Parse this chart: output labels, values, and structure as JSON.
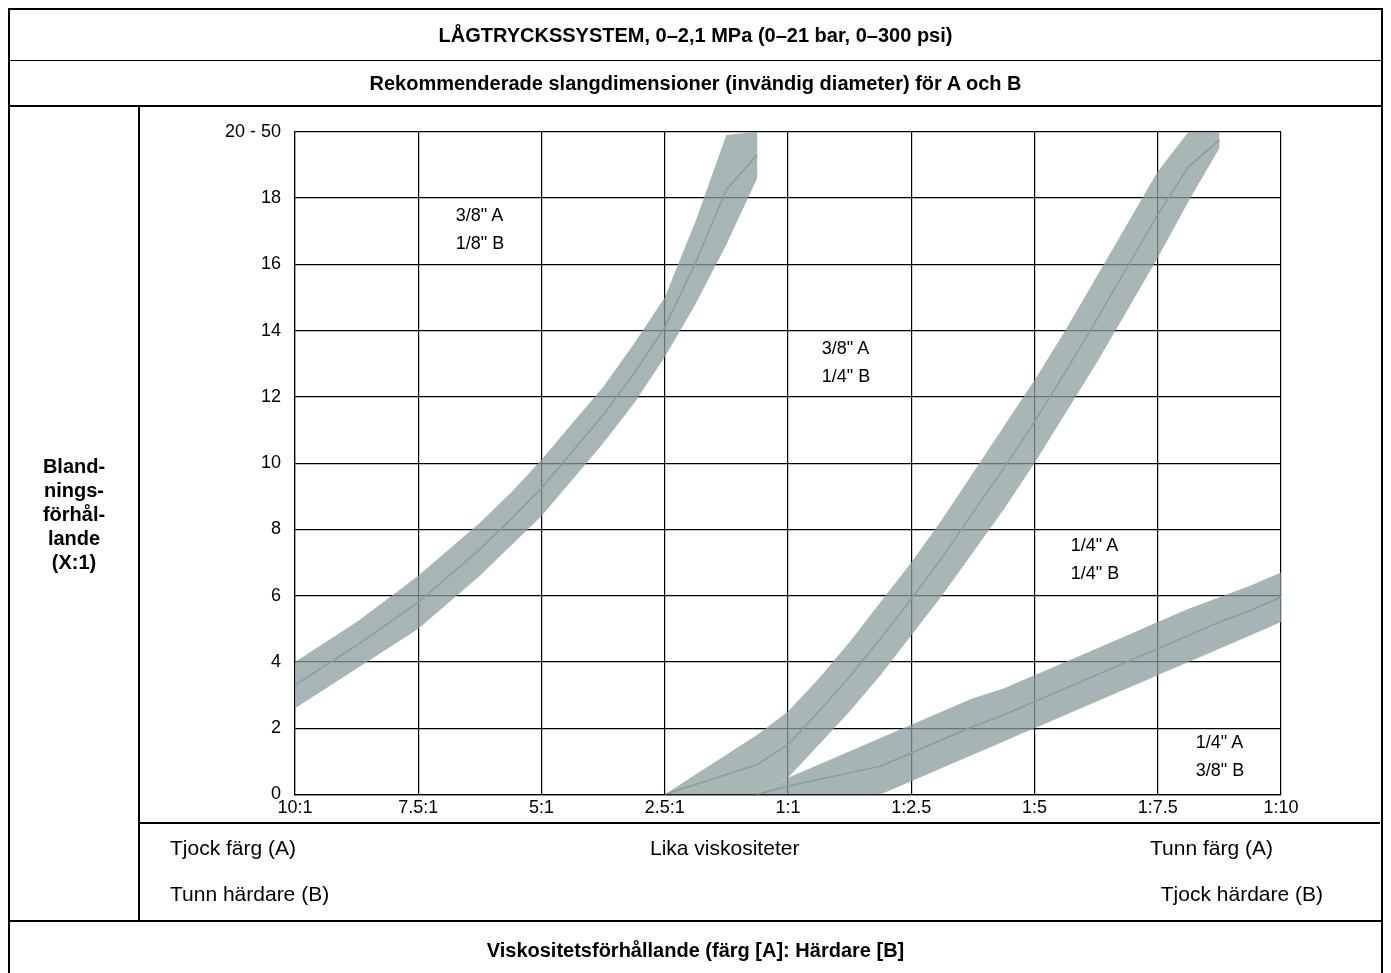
{
  "chart_data": {
    "type": "line",
    "title": "LÅGTRYCKSSYSTEM, 0–2,1 MPa (0–21 bar, 0–300 psi)",
    "subtitle": "Rekommenderade slangdimensioner (invändig diameter) för A och B",
    "categories": [
      "10:1",
      null,
      null,
      null,
      "7.5:1",
      null,
      null,
      null,
      "5:1",
      null,
      null,
      null,
      "2.5:1",
      null,
      null,
      null,
      "1:1",
      null,
      null,
      null,
      "1:2.5",
      null,
      null,
      null,
      "1:5",
      null,
      null,
      null,
      "1:7.5",
      null,
      null,
      null,
      "1:10"
    ],
    "ylim": [
      0,
      20
    ],
    "yticks": [
      0,
      2,
      4,
      6,
      8,
      10,
      12,
      14,
      16,
      18,
      {
        "value": 20,
        "label": "20 - 50"
      }
    ],
    "grid": true,
    "series": [
      {
        "color": "#8a9c9d",
        "values": [
          3.3,
          3.9,
          4.5,
          5.15,
          5.8,
          6.6,
          7.4,
          8.3,
          9.25,
          10.35,
          11.45,
          12.7,
          14.1,
          16.05,
          18.25,
          19.3,
          null,
          null,
          null,
          null,
          null,
          null,
          null,
          null,
          null,
          null,
          null,
          null,
          null,
          null,
          null,
          null,
          null
        ],
        "lower": [
          2.6,
          3.2,
          3.8,
          4.4,
          5.0,
          5.8,
          6.6,
          7.5,
          8.4,
          9.5,
          10.6,
          11.8,
          13.2,
          14.8,
          16.6,
          18.6,
          null,
          null,
          null,
          null,
          null,
          null,
          null,
          null,
          null,
          null,
          null,
          null,
          null,
          null,
          null,
          null,
          null
        ],
        "upper": [
          4.0,
          4.6,
          5.2,
          5.9,
          6.6,
          7.4,
          8.2,
          9.1,
          10.1,
          11.2,
          12.3,
          13.6,
          15.0,
          17.3,
          19.9,
          20,
          null,
          null,
          null,
          null,
          null,
          null,
          null,
          null,
          null,
          null,
          null,
          null,
          null,
          null,
          null,
          null,
          null
        ]
      },
      {
        "color": "#8b9d9e",
        "values": [
          null,
          null,
          null,
          null,
          null,
          null,
          null,
          null,
          null,
          null,
          null,
          null,
          0,
          0.3,
          0.6,
          0.9,
          1.5,
          2.5,
          3.55,
          4.7,
          5.9,
          7.15,
          8.5,
          9.85,
          11.25,
          12.75,
          14.3,
          15.9,
          17.5,
          18.95,
          19.75,
          null,
          null
        ],
        "lower": [
          null,
          null,
          null,
          null,
          null,
          null,
          null,
          null,
          null,
          null,
          null,
          null,
          0,
          0,
          0,
          0,
          0.5,
          1.5,
          2.5,
          3.6,
          4.8,
          6.0,
          7.3,
          8.6,
          10.0,
          11.5,
          13.0,
          14.6,
          16.2,
          17.9,
          19.5,
          null,
          null
        ],
        "upper": [
          null,
          null,
          null,
          null,
          null,
          null,
          null,
          null,
          null,
          null,
          null,
          null,
          0,
          0.6,
          1.2,
          1.8,
          2.5,
          3.5,
          4.6,
          5.8,
          7.0,
          8.3,
          9.7,
          11.1,
          12.5,
          14.0,
          15.6,
          17.2,
          18.8,
          20,
          20,
          null,
          null
        ]
      },
      {
        "color": "#899b9c",
        "values": [
          null,
          null,
          null,
          null,
          null,
          null,
          null,
          null,
          null,
          null,
          null,
          null,
          null,
          null,
          null,
          0,
          0.25,
          0.45,
          0.65,
          0.85,
          1.25,
          1.65,
          2.05,
          2.4,
          2.8,
          3.2,
          3.6,
          4.0,
          4.4,
          4.8,
          5.2,
          5.55,
          5.95
        ],
        "lower": [
          null,
          null,
          null,
          null,
          null,
          null,
          null,
          null,
          null,
          null,
          null,
          null,
          null,
          null,
          null,
          0,
          0,
          0,
          0,
          0,
          0.4,
          0.8,
          1.2,
          1.6,
          2.0,
          2.4,
          2.8,
          3.2,
          3.6,
          4.0,
          4.4,
          4.8,
          5.2
        ],
        "upper": [
          null,
          null,
          null,
          null,
          null,
          null,
          null,
          null,
          null,
          null,
          null,
          null,
          null,
          null,
          null,
          0,
          0.5,
          0.9,
          1.3,
          1.7,
          2.1,
          2.5,
          2.9,
          3.2,
          3.6,
          4.0,
          4.4,
          4.8,
          5.2,
          5.6,
          5.95,
          6.3,
          6.7
        ]
      }
    ],
    "annotations": [
      "3/8\" A\n1/8\" B",
      "3/8\" A\n1/4\" B",
      "1/4\" A\n1/4\" B",
      "1/4\" A\n3/8\" B",
      "Tjock färg (A)",
      "Lika viskositeter",
      "Tunn färg (A)",
      "Tunn härdare (B)",
      "Tjock härdare (B)",
      "Bland-\nnings-\nförhål-\nlande\n(X:1)",
      "Viskositetsförhållande (färg [A]: Härdare [B]"
    ]
  }
}
